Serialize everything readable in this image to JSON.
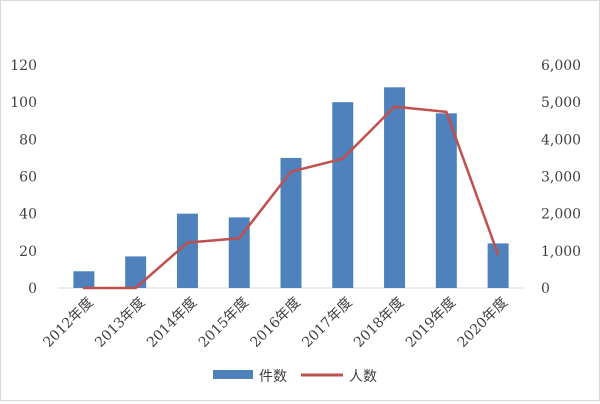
{
  "chart_data": {
    "type": "bar+line",
    "title": "",
    "categories": [
      "2012年度",
      "2013年度",
      "2014年度",
      "2015年度",
      "2016年度",
      "2017年度",
      "2018年度",
      "2019年度",
      "2020年度"
    ],
    "series": [
      {
        "name": "件数",
        "type": "bar",
        "axis": "left",
        "color": "#4f81bd",
        "values": [
          9,
          17,
          40,
          38,
          70,
          100,
          108,
          94,
          24
        ]
      },
      {
        "name": "人数",
        "type": "line",
        "axis": "right",
        "color": "#c0504d",
        "values": [
          0,
          0,
          1220,
          1340,
          3130,
          3480,
          4880,
          4740,
          900
        ]
      }
    ],
    "y_left": {
      "min": 0,
      "max": 120,
      "ticks": [
        "0",
        "20",
        "40",
        "60",
        "80",
        "100",
        "120"
      ]
    },
    "y_right": {
      "min": 0,
      "max": 6000,
      "ticks": [
        "0",
        "1,000",
        "2,000",
        "3,000",
        "4,000",
        "5,000",
        "6,000"
      ]
    },
    "grid": false,
    "legend_position": "bottom"
  }
}
